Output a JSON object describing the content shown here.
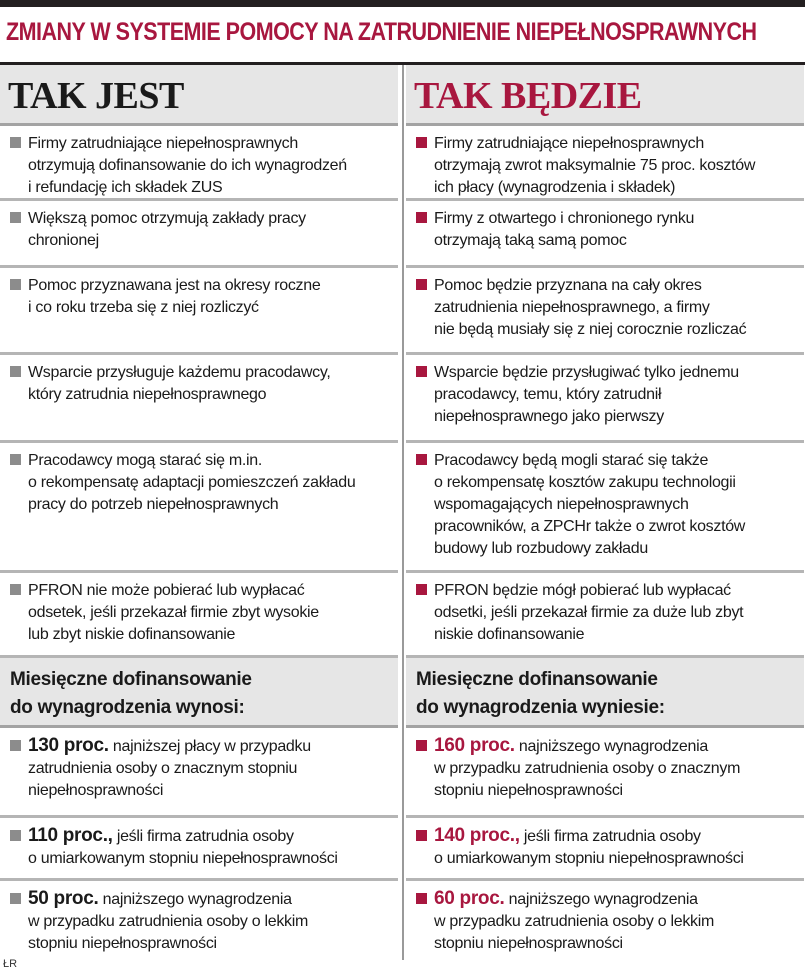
{
  "title": "ZMIANY W SYSTEMIE POMOCY NA ZATRUDNIENIE NIEPEŁNOSPRAWNYCH",
  "left": {
    "header": "TAK JEST",
    "items": [
      [
        "Firmy zatrudniające niepełnosprawnych",
        "otrzymują dofinansowanie do ich wynagrodzeń",
        "i refundację ich składek ZUS"
      ],
      [
        "Większą pomoc otrzymują zakłady pracy",
        "chronionej"
      ],
      [
        "Pomoc przyznawana jest na okresy roczne",
        "i co roku trzeba się z niej rozliczyć"
      ],
      [
        "Wsparcie przysługuje każdemu pracodawcy,",
        "który zatrudnia niepełnosprawnego"
      ],
      [
        "Pracodawcy mogą starać się m.in.",
        "o rekompensatę adaptacji pomieszczeń zakładu",
        "pracy do potrzeb niepełnosprawnych"
      ],
      [
        "PFRON nie może pobierać lub wypłacać",
        "odsetek, jeśli przekazał firmie zbyt wysokie",
        "lub zbyt niskie dofinansowanie"
      ]
    ],
    "subheader": [
      "Miesięczne dofinansowanie",
      "do wynagrodzenia wynosi:"
    ],
    "rates": [
      {
        "value": "130 proc.",
        "lines": [
          "najniższej płacy w przypadku",
          "zatrudnienia osoby o znacznym stopniu",
          "niepełnosprawności"
        ]
      },
      {
        "value": "110 proc.,",
        "lines": [
          "jeśli firma zatrudnia osoby",
          "o umiarkowanym stopniu niepełnosprawności"
        ]
      },
      {
        "value": "50 proc.",
        "lines": [
          "najniższego wynagrodzenia",
          "w przypadku zatrudnienia osoby o lekkim",
          "stopniu niepełnosprawności"
        ]
      }
    ]
  },
  "right": {
    "header": "TAK BĘDZIE",
    "items": [
      [
        "Firmy zatrudniające niepełnosprawnych",
        "otrzymają zwrot maksymalnie 75 proc. kosztów",
        "ich płacy (wynagrodzenia i składek)"
      ],
      [
        "Firmy z otwartego i chronionego rynku",
        "otrzymają taką samą pomoc"
      ],
      [
        "Pomoc będzie przyznana na cały okres",
        "zatrudnienia niepełnosprawnego, a firmy",
        "nie będą musiały się z niej corocznie rozliczać"
      ],
      [
        "Wsparcie będzie przysługiwać tylko jednemu",
        "pracodawcy, temu, który zatrudnił",
        "niepełnosprawnego jako pierwszy"
      ],
      [
        "Pracodawcy będą mogli starać się także",
        "o rekompensatę kosztów zakupu technologii",
        "wspomagających niepełnosprawnych",
        "pracowników, a ZPCHr także o zwrot kosztów",
        "budowy lub rozbudowy zakładu"
      ],
      [
        "PFRON będzie mógł pobierać lub wypłacać",
        "odsetki, jeśli przekazał firmie za duże lub zbyt",
        "niskie dofinansowanie"
      ]
    ],
    "subheader": [
      "Miesięczne dofinansowanie",
      "do wynagrodzenia wyniesie:"
    ],
    "rates": [
      {
        "value": "160 proc.",
        "lines": [
          "najniższego wynagrodzenia",
          "w przypadku zatrudnienia osoby o znacznym",
          "stopniu niepełnosprawności"
        ]
      },
      {
        "value": "140 proc.,",
        "lines": [
          "jeśli firma zatrudnia osoby",
          "o umiarkowanym stopniu niepełnosprawności"
        ]
      },
      {
        "value": "60 proc.",
        "lines": [
          "najniższego wynagrodzenia",
          "w przypadku zatrudnienia osoby o lekkim",
          "stopniu niepełnosprawności"
        ]
      }
    ]
  },
  "footer": "ŁR"
}
